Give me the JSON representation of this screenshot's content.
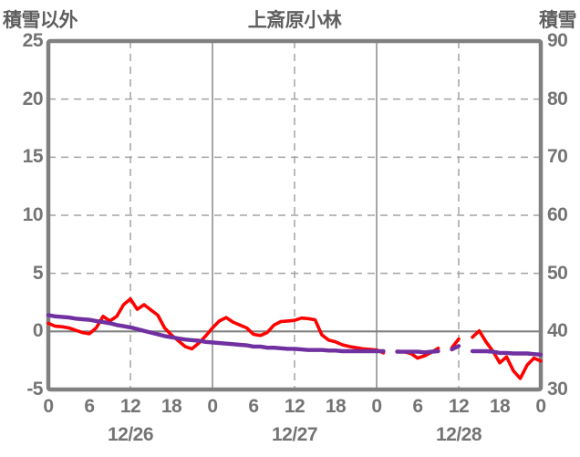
{
  "header": {
    "left_axis_title": "積雪以外",
    "title": "上斎原小林",
    "right_axis_title": "積雪"
  },
  "colors": {
    "frame": "#808080",
    "grid_dashed": "#a3a3a3",
    "grid_solid": "#8f8f8f",
    "zero_line": "#828282",
    "tick_text": "#747474",
    "title_text": "#5f5f5f",
    "red_line": "#ff0000",
    "purple_line": "#7030a0"
  },
  "chart_data": {
    "type": "line",
    "title": "上斎原小林",
    "left_axis": {
      "label": "積雪以外",
      "min": -5,
      "max": 25,
      "ticks": [
        25,
        20,
        15,
        10,
        5,
        0,
        -5
      ]
    },
    "right_axis": {
      "label": "積雪",
      "min": 30,
      "max": 90,
      "ticks": [
        90,
        80,
        70,
        60,
        50,
        40,
        30
      ]
    },
    "x_axis": {
      "tick_labels": [
        "0",
        "6",
        "12",
        "18",
        "0",
        "6",
        "12",
        "18",
        "0",
        "6",
        "12",
        "18",
        "0"
      ],
      "tick_hours": [
        0,
        6,
        12,
        18,
        24,
        30,
        36,
        42,
        48,
        54,
        60,
        66,
        72
      ],
      "day_labels": [
        "12/26",
        "12/27",
        "12/28"
      ],
      "day_center_hours": [
        12,
        36,
        60
      ],
      "total_hours": 72,
      "gridlines_dashed_at_hours": [
        12,
        36,
        60
      ],
      "gridlines_solid_at_hours": [
        24,
        48
      ]
    },
    "series": [
      {
        "name": "red-series",
        "axis": "left",
        "color": "#ff0000",
        "values": [
          0.7,
          0.45,
          0.4,
          0.3,
          0.1,
          -0.1,
          -0.2,
          0.3,
          1.3,
          0.9,
          1.3,
          2.3,
          2.8,
          1.9,
          2.3,
          1.85,
          1.4,
          0.3,
          -0.3,
          -0.8,
          -1.3,
          -1.5,
          -1.0,
          -0.4,
          0.3,
          0.9,
          1.2,
          0.8,
          0.55,
          0.3,
          -0.25,
          -0.35,
          -0.1,
          0.55,
          0.85,
          0.9,
          0.95,
          1.15,
          1.1,
          1.0,
          -0.3,
          -0.75,
          -0.9,
          -1.15,
          -1.3,
          -1.4,
          -1.5,
          -1.55,
          -1.6,
          -1.85,
          null,
          -1.7,
          -1.75,
          -1.9,
          -2.3,
          -2.1,
          -1.8,
          -1.45,
          null,
          -1.4,
          -0.65,
          null,
          -0.5,
          0.05,
          -0.9,
          -1.7,
          -2.7,
          -2.2,
          -3.4,
          -4.05,
          -2.9,
          -2.3,
          -2.55
        ]
      },
      {
        "name": "purple-series",
        "axis": "right",
        "color": "#7030a0",
        "values": [
          42.8,
          42.6,
          42.5,
          42.4,
          42.2,
          42.1,
          42.0,
          41.8,
          41.6,
          41.4,
          41.1,
          40.9,
          40.7,
          40.4,
          40.1,
          39.8,
          39.5,
          39.2,
          39.0,
          38.8,
          38.6,
          38.5,
          38.4,
          38.2,
          38.1,
          38.0,
          37.9,
          37.8,
          37.7,
          37.6,
          37.4,
          37.4,
          37.2,
          37.2,
          37.1,
          37.0,
          37.0,
          36.9,
          36.8,
          36.8,
          36.8,
          36.7,
          36.7,
          36.6,
          36.6,
          36.6,
          36.6,
          36.6,
          36.6,
          36.6,
          null,
          36.5,
          36.5,
          36.5,
          36.5,
          36.4,
          36.5,
          36.6,
          null,
          36.9,
          37.5,
          null,
          36.6,
          36.6,
          36.6,
          36.5,
          36.3,
          36.3,
          36.2,
          36.2,
          36.2,
          36.1,
          36.0
        ]
      }
    ]
  }
}
